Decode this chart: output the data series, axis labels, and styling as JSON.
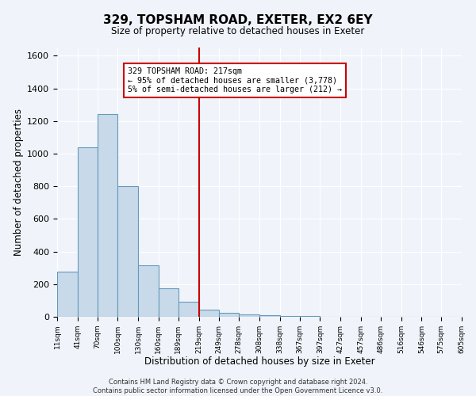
{
  "title": "329, TOPSHAM ROAD, EXETER, EX2 6EY",
  "subtitle": "Size of property relative to detached houses in Exeter",
  "xlabel": "Distribution of detached houses by size in Exeter",
  "ylabel": "Number of detached properties",
  "bin_edges": [
    11,
    41,
    70,
    100,
    130,
    160,
    189,
    219,
    249,
    278,
    308,
    338,
    367,
    397,
    427,
    457,
    486,
    516,
    546,
    575,
    605
  ],
  "bin_labels": [
    "11sqm",
    "41sqm",
    "70sqm",
    "100sqm",
    "130sqm",
    "160sqm",
    "189sqm",
    "219sqm",
    "249sqm",
    "278sqm",
    "308sqm",
    "338sqm",
    "367sqm",
    "397sqm",
    "427sqm",
    "457sqm",
    "486sqm",
    "516sqm",
    "546sqm",
    "575sqm",
    "605sqm"
  ],
  "counts": [
    275,
    1040,
    1240,
    800,
    315,
    175,
    90,
    45,
    25,
    15,
    8,
    5,
    3,
    2,
    1,
    1,
    0,
    0,
    0,
    0
  ],
  "bar_color": "#c8daea",
  "bar_edge_color": "#6699bb",
  "vline_x": 219,
  "vline_color": "#cc0000",
  "annotation_text": "329 TOPSHAM ROAD: 217sqm\n← 95% of detached houses are smaller (3,778)\n5% of semi-detached houses are larger (212) →",
  "annotation_box_color": "#cc0000",
  "ylim": [
    0,
    1650
  ],
  "yticks": [
    0,
    200,
    400,
    600,
    800,
    1000,
    1200,
    1400,
    1600
  ],
  "footer1": "Contains HM Land Registry data © Crown copyright and database right 2024.",
  "footer2": "Contains public sector information licensed under the Open Government Licence v3.0.",
  "bg_color": "#f0f4fa",
  "plot_bg_color": "#f0f4fa",
  "grid_color": "#ffffff"
}
